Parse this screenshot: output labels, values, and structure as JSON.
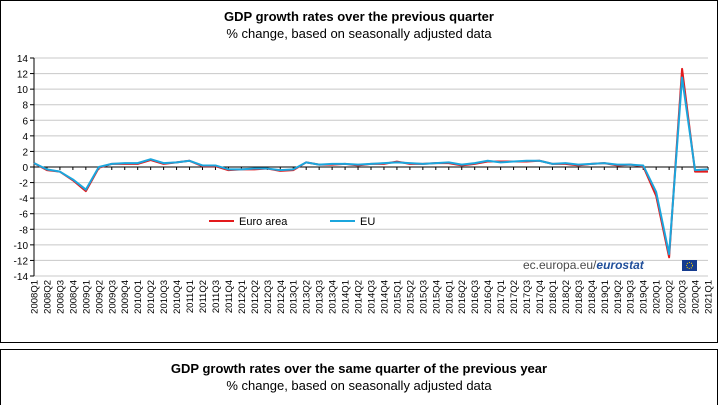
{
  "chart_data": [
    {
      "type": "line",
      "title": "GDP growth rates over the previous quarter",
      "subtitle": "% change, based on seasonally adjusted data",
      "xlabel": "",
      "ylabel": "",
      "ylim": [
        -14,
        14
      ],
      "yticks": [
        14,
        12,
        10,
        8,
        6,
        4,
        2,
        0,
        -2,
        -4,
        -6,
        -8,
        -10,
        -12,
        -14
      ],
      "grid": true,
      "legend_position": "lower-left",
      "categories": [
        "2008Q1",
        "2008Q2",
        "2008Q3",
        "2008Q4",
        "2009Q1",
        "2009Q2",
        "2009Q3",
        "2009Q4",
        "2010Q1",
        "2010Q2",
        "2010Q3",
        "2010Q4",
        "2011Q1",
        "2011Q2",
        "2011Q3",
        "2011Q4",
        "2012Q1",
        "2012Q2",
        "2012Q3",
        "2012Q4",
        "2013Q1",
        "2013Q2",
        "2013Q3",
        "2013Q4",
        "2014Q1",
        "2014Q2",
        "2014Q3",
        "2014Q4",
        "2015Q1",
        "2015Q2",
        "2015Q3",
        "2015Q4",
        "2016Q1",
        "2016Q2",
        "2016Q3",
        "2016Q4",
        "2017Q1",
        "2017Q2",
        "2017Q3",
        "2017Q4",
        "2018Q1",
        "2018Q2",
        "2018Q3",
        "2018Q4",
        "2019Q1",
        "2019Q2",
        "2019Q3",
        "2019Q4",
        "2020Q1",
        "2020Q2",
        "2020Q3",
        "2020Q4",
        "2021Q1"
      ],
      "series": [
        {
          "name": "Euro area",
          "color": "#e31a1c",
          "values": [
            0.5,
            -0.4,
            -0.6,
            -1.7,
            -3.1,
            -0.1,
            0.4,
            0.4,
            0.4,
            0.9,
            0.4,
            0.6,
            0.8,
            0.1,
            0.1,
            -0.4,
            -0.3,
            -0.3,
            -0.2,
            -0.5,
            -0.4,
            0.6,
            0.3,
            0.3,
            0.4,
            0.2,
            0.4,
            0.4,
            0.7,
            0.4,
            0.4,
            0.5,
            0.5,
            0.2,
            0.4,
            0.7,
            0.7,
            0.7,
            0.7,
            0.8,
            0.4,
            0.4,
            0.2,
            0.4,
            0.5,
            0.2,
            0.3,
            0.1,
            -3.7,
            -11.6,
            12.6,
            -0.6,
            -0.6
          ]
        },
        {
          "name": "EU",
          "color": "#1ba6dd",
          "values": [
            0.5,
            -0.3,
            -0.6,
            -1.6,
            -2.9,
            0.0,
            0.4,
            0.5,
            0.5,
            1.0,
            0.5,
            0.6,
            0.8,
            0.2,
            0.2,
            -0.3,
            -0.3,
            -0.2,
            -0.2,
            -0.4,
            -0.3,
            0.6,
            0.3,
            0.4,
            0.4,
            0.3,
            0.4,
            0.5,
            0.6,
            0.5,
            0.4,
            0.5,
            0.6,
            0.3,
            0.5,
            0.8,
            0.6,
            0.7,
            0.8,
            0.8,
            0.4,
            0.5,
            0.3,
            0.4,
            0.5,
            0.3,
            0.3,
            0.2,
            -3.2,
            -11.2,
            11.5,
            -0.4,
            -0.3
          ]
        }
      ],
      "annotations": [
        "ec.europa.eu/",
        "eurostat"
      ]
    },
    {
      "type": "line",
      "title": "GDP growth rates over the same quarter of the previous year",
      "subtitle": "% change, based on seasonally adjusted data"
    }
  ]
}
